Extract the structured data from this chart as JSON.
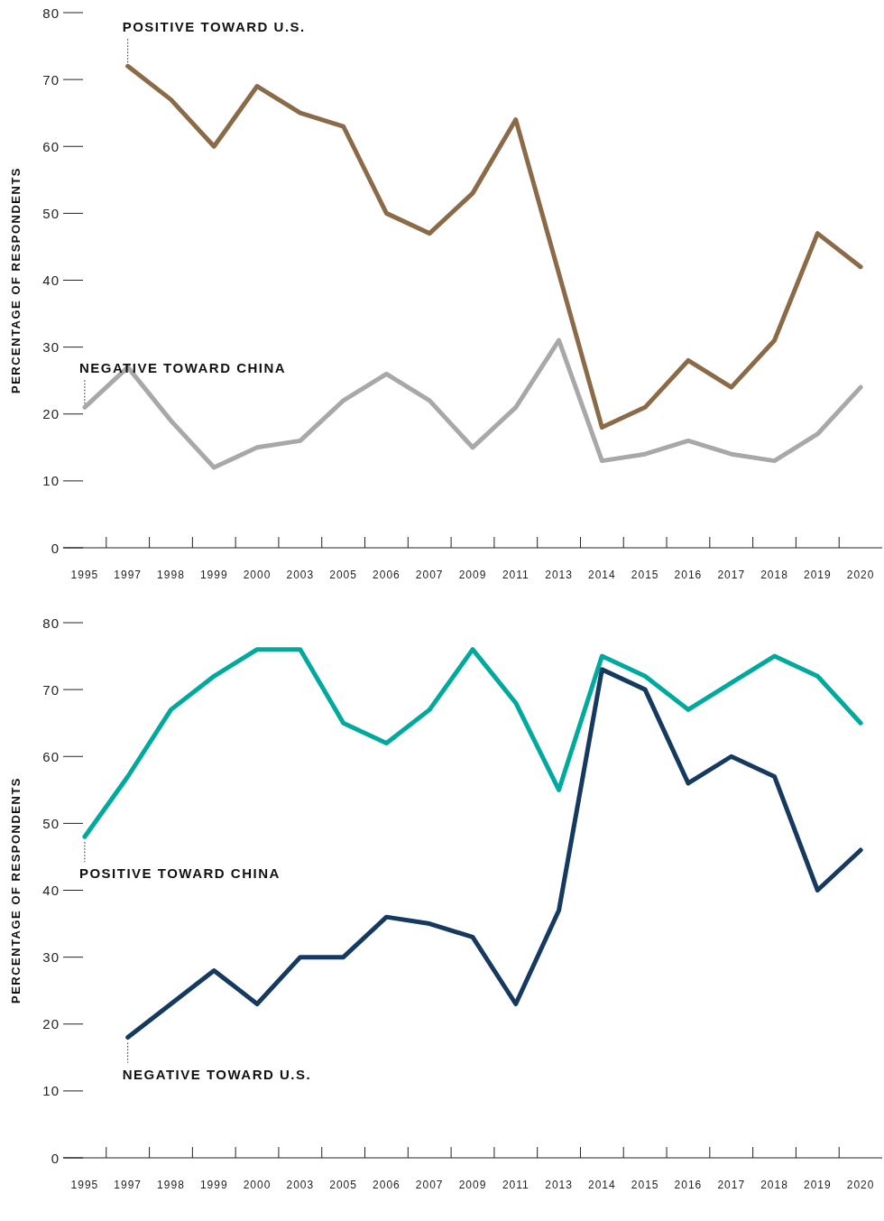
{
  "chart_data": [
    {
      "type": "line",
      "ylabel": "PERCENTAGE OF RESPONDENTS",
      "categories": [
        "1995",
        "1997",
        "1998",
        "1999",
        "2000",
        "2003",
        "2005",
        "2006",
        "2007",
        "2009",
        "2011",
        "2013",
        "2014",
        "2015",
        "2016",
        "2017",
        "2018",
        "2019",
        "2020"
      ],
      "ylim": [
        0,
        80
      ],
      "yticks": [
        0,
        10,
        20,
        30,
        40,
        50,
        60,
        70,
        80
      ],
      "grid": false,
      "legend": false,
      "series": [
        {
          "name": "POSITIVE TOWARD U.S.",
          "color": "#8b6a47",
          "values": [
            null,
            72,
            67,
            60,
            69,
            65,
            63,
            50,
            47,
            53,
            64,
            41,
            18,
            21,
            28,
            24,
            31,
            47,
            42
          ]
        },
        {
          "name": "NEGATIVE TOWARD CHINA",
          "color": "#a8a8a8",
          "values": [
            21,
            27,
            19,
            12,
            15,
            16,
            22,
            26,
            22,
            15,
            21,
            31,
            13,
            14,
            16,
            14,
            13,
            17,
            24
          ]
        }
      ]
    },
    {
      "type": "line",
      "ylabel": "PERCENTAGE OF RESPONDENTS",
      "categories": [
        "1995",
        "1997",
        "1998",
        "1999",
        "2000",
        "2003",
        "2005",
        "2006",
        "2007",
        "2009",
        "2011",
        "2013",
        "2014",
        "2015",
        "2016",
        "2017",
        "2018",
        "2019",
        "2020"
      ],
      "ylim": [
        0,
        80
      ],
      "yticks": [
        0,
        10,
        20,
        30,
        40,
        50,
        60,
        70,
        80
      ],
      "grid": false,
      "legend": false,
      "series": [
        {
          "name": "POSITIVE TOWARD CHINA",
          "color": "#00a99d",
          "values": [
            48,
            57,
            67,
            72,
            76,
            76,
            65,
            62,
            67,
            76,
            68,
            55,
            75,
            72,
            67,
            71,
            75,
            72,
            65
          ]
        },
        {
          "name": "NEGATIVE TOWARD U.S.",
          "color": "#163a5f",
          "values": [
            null,
            18,
            23,
            28,
            23,
            30,
            30,
            36,
            35,
            33,
            23,
            37,
            73,
            70,
            56,
            60,
            57,
            40,
            46
          ]
        }
      ]
    }
  ]
}
